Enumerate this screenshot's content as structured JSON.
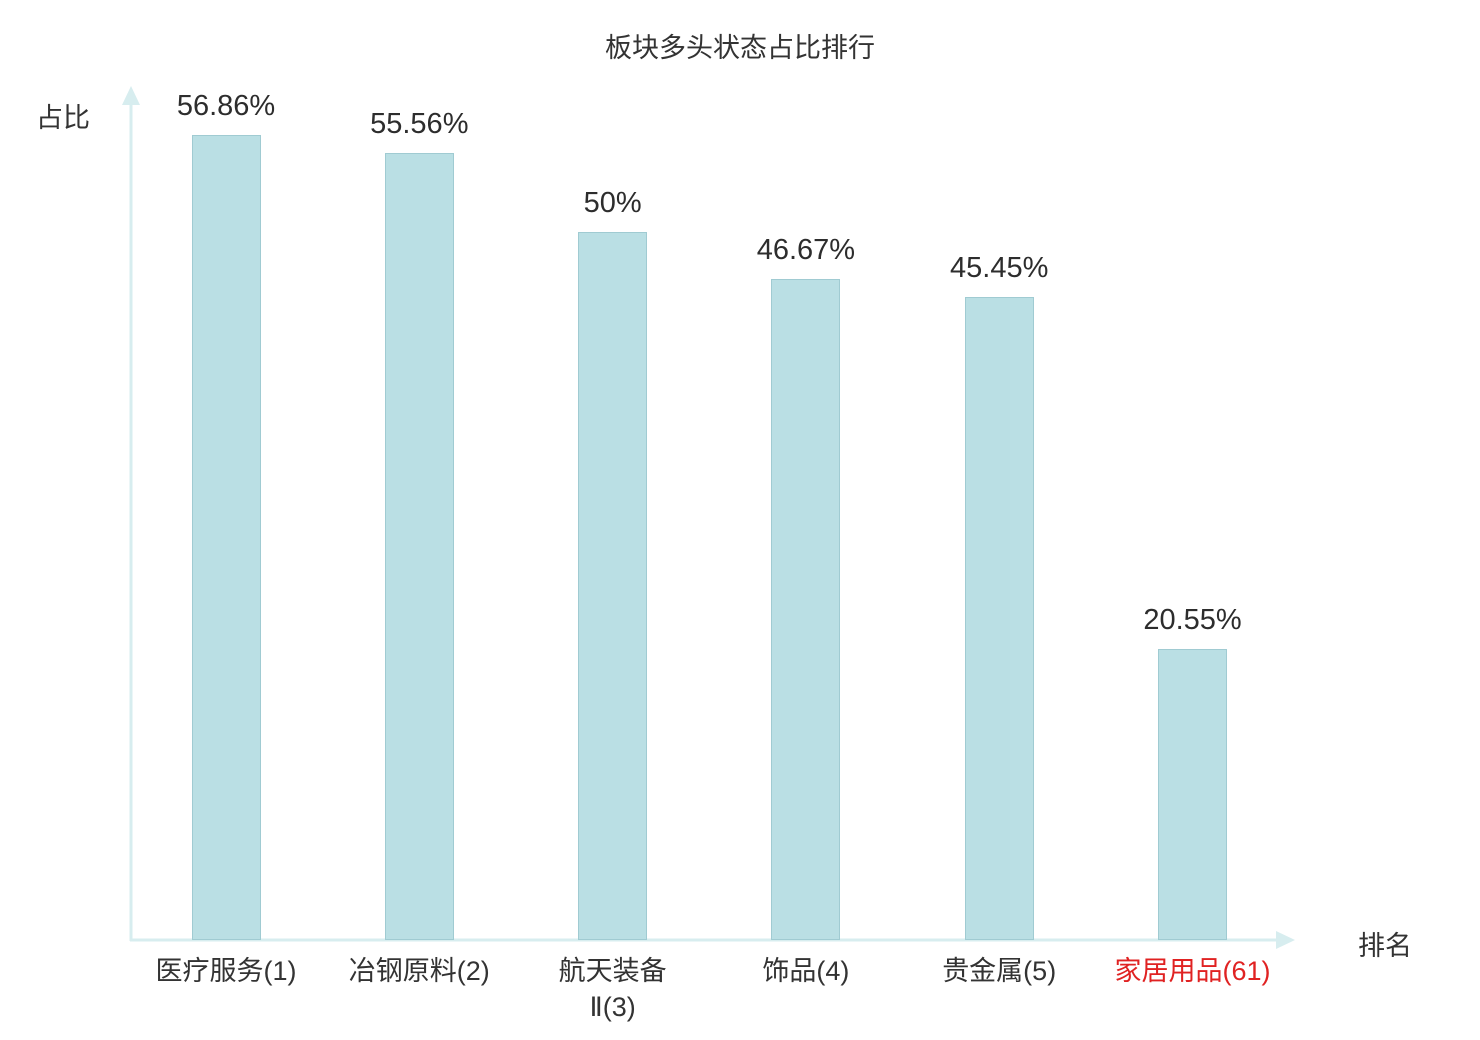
{
  "chart": {
    "title": "板块多头状态占比排行",
    "ylabel": "占比",
    "xlabel": "排名"
  },
  "chart_data": {
    "type": "bar",
    "title": "板块多头状态占比排行",
    "xlabel": "排名",
    "ylabel": "占比",
    "categories": [
      "医疗服务(1)",
      "冶钢原料(2)",
      "航天装备\nⅡ(3)",
      "饰品(4)",
      "贵金属(5)",
      "家居用品(61)"
    ],
    "values": [
      56.86,
      55.56,
      50,
      46.67,
      45.45,
      20.55
    ],
    "value_labels": [
      "56.86%",
      "55.56%",
      "50%",
      "46.67%",
      "45.45%",
      "20.55%"
    ],
    "highlight_index": 5,
    "ylim": [
      0,
      60
    ],
    "grid": false,
    "legend": "none"
  },
  "colors": {
    "bar_fill": "#badfe4",
    "bar_border": "#a0cbd2",
    "axis": "#d7edef",
    "text": "#333333",
    "value_text": "#2d2d2d",
    "highlight": "#e02222"
  }
}
